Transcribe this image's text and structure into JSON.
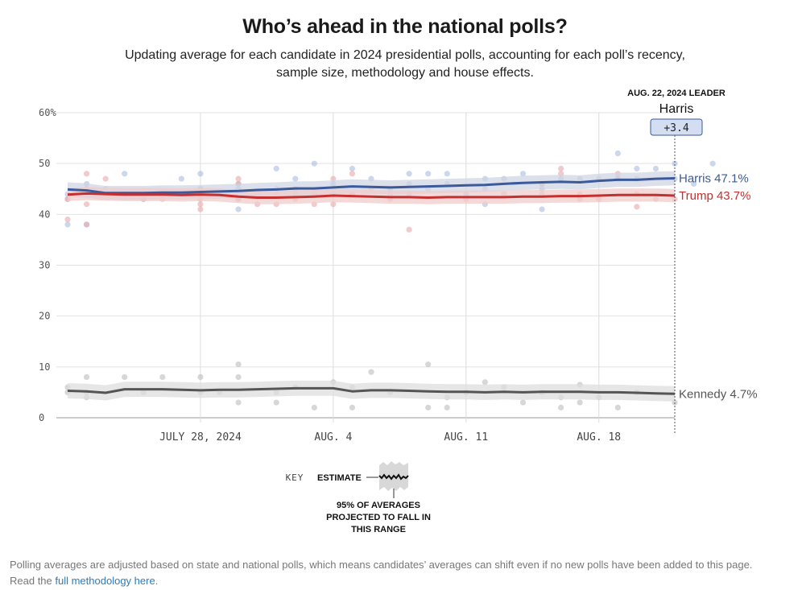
{
  "header": {
    "title": "Who’s ahead in the national polls?",
    "subtitle_line1": "Updating average for each candidate in 2024 presidential polls, accounting for each poll’s recency,",
    "subtitle_line2": "sample size, methodology and house effects."
  },
  "leader_box": {
    "caption": "AUG. 22, 2024 LEADER",
    "name": "Harris",
    "margin": "+3.4"
  },
  "key": {
    "label": "KEY",
    "estimate": "ESTIMATE",
    "range_note": [
      "95% OF AVERAGES",
      "PROJECTED TO FALL IN",
      "THIS RANGE"
    ]
  },
  "footnote": {
    "text_line1": "Polling averages are adjusted based on state and national polls, which means candidates’ averages can shift even if no new polls have been added to this page.",
    "text_line2_prefix": "Read the ",
    "link_text": "full methodology here",
    "text_line2_suffix": "."
  },
  "chart_data": {
    "type": "line",
    "x_start_date": "2024-07-21",
    "x_end_date": "2024-08-22",
    "x_ticks": [
      {
        "date": "2024-07-28",
        "label": "JULY 28, 2024"
      },
      {
        "date": "2024-08-04",
        "label": "AUG. 4"
      },
      {
        "date": "2024-08-11",
        "label": "AUG. 11"
      },
      {
        "date": "2024-08-18",
        "label": "AUG. 18"
      }
    ],
    "y_ticks": [
      {
        "value": 0,
        "label": "0"
      },
      {
        "value": 10,
        "label": "10"
      },
      {
        "value": 20,
        "label": "20"
      },
      {
        "value": 30,
        "label": "30"
      },
      {
        "value": 40,
        "label": "40"
      },
      {
        "value": 50,
        "label": "50"
      },
      {
        "value": 60,
        "label": "60%"
      }
    ],
    "ylim": [
      0,
      60
    ],
    "grid": true,
    "series": [
      {
        "name": "Harris",
        "end_label": "Harris 47.1%",
        "color": "#3a5a9c",
        "band_width": 1.4,
        "points": [
          [
            "2024-07-21",
            44.9
          ],
          [
            "2024-07-22",
            44.7
          ],
          [
            "2024-07-23",
            44.2
          ],
          [
            "2024-07-24",
            44.2
          ],
          [
            "2024-07-25",
            44.2
          ],
          [
            "2024-07-26",
            44.3
          ],
          [
            "2024-07-27",
            44.3
          ],
          [
            "2024-07-28",
            44.4
          ],
          [
            "2024-07-29",
            44.5
          ],
          [
            "2024-07-30",
            44.6
          ],
          [
            "2024-07-31",
            44.8
          ],
          [
            "2024-08-01",
            44.9
          ],
          [
            "2024-08-02",
            45.1
          ],
          [
            "2024-08-03",
            45.1
          ],
          [
            "2024-08-04",
            45.3
          ],
          [
            "2024-08-05",
            45.5
          ],
          [
            "2024-08-06",
            45.4
          ],
          [
            "2024-08-07",
            45.3
          ],
          [
            "2024-08-08",
            45.4
          ],
          [
            "2024-08-09",
            45.5
          ],
          [
            "2024-08-10",
            45.6
          ],
          [
            "2024-08-11",
            45.7
          ],
          [
            "2024-08-12",
            45.8
          ],
          [
            "2024-08-13",
            46.0
          ],
          [
            "2024-08-14",
            46.2
          ],
          [
            "2024-08-15",
            46.3
          ],
          [
            "2024-08-16",
            46.4
          ],
          [
            "2024-08-17",
            46.3
          ],
          [
            "2024-08-18",
            46.6
          ],
          [
            "2024-08-19",
            46.8
          ],
          [
            "2024-08-20",
            46.8
          ],
          [
            "2024-08-21",
            47.0
          ],
          [
            "2024-08-22",
            47.1
          ]
        ],
        "polls": [
          [
            "2024-07-21",
            38
          ],
          [
            "2024-07-21",
            43
          ],
          [
            "2024-07-21",
            44
          ],
          [
            "2024-07-22",
            44
          ],
          [
            "2024-07-22",
            46
          ],
          [
            "2024-07-22",
            38
          ],
          [
            "2024-07-23",
            45
          ],
          [
            "2024-07-24",
            48
          ],
          [
            "2024-07-25",
            43
          ],
          [
            "2024-07-26",
            44
          ],
          [
            "2024-07-27",
            47
          ],
          [
            "2024-07-28",
            48
          ],
          [
            "2024-07-28",
            45
          ],
          [
            "2024-07-28",
            44
          ],
          [
            "2024-07-29",
            44
          ],
          [
            "2024-07-30",
            45
          ],
          [
            "2024-07-30",
            43
          ],
          [
            "2024-07-30",
            41
          ],
          [
            "2024-07-30",
            46
          ],
          [
            "2024-07-31",
            44
          ],
          [
            "2024-08-01",
            49
          ],
          [
            "2024-08-01",
            45
          ],
          [
            "2024-08-02",
            47
          ],
          [
            "2024-08-02",
            44
          ],
          [
            "2024-08-03",
            50
          ],
          [
            "2024-08-03",
            44
          ],
          [
            "2024-08-04",
            46
          ],
          [
            "2024-08-04",
            44
          ],
          [
            "2024-08-05",
            49
          ],
          [
            "2024-08-05",
            44
          ],
          [
            "2024-08-06",
            47
          ],
          [
            "2024-08-07",
            45
          ],
          [
            "2024-08-08",
            48
          ],
          [
            "2024-08-08",
            46
          ],
          [
            "2024-08-09",
            48
          ],
          [
            "2024-08-10",
            48
          ],
          [
            "2024-08-10",
            46
          ],
          [
            "2024-08-11",
            44
          ],
          [
            "2024-08-12",
            47
          ],
          [
            "2024-08-12",
            42
          ],
          [
            "2024-08-13",
            47
          ],
          [
            "2024-08-14",
            48
          ],
          [
            "2024-08-15",
            46
          ],
          [
            "2024-08-15",
            41
          ],
          [
            "2024-08-15",
            45
          ],
          [
            "2024-08-16",
            47
          ],
          [
            "2024-08-17",
            47
          ],
          [
            "2024-08-18",
            47
          ],
          [
            "2024-08-19",
            52
          ],
          [
            "2024-08-19",
            47
          ],
          [
            "2024-08-20",
            49
          ],
          [
            "2024-08-20",
            47
          ],
          [
            "2024-08-21",
            49
          ],
          [
            "2024-08-22",
            50
          ],
          [
            "2024-08-22",
            47
          ],
          [
            "2024-08-23",
            46
          ],
          [
            "2024-08-24",
            50
          ]
        ]
      },
      {
        "name": "Trump",
        "end_label": "Trump 43.7%",
        "color": "#c62f2f",
        "band_width": 1.3,
        "points": [
          [
            "2024-07-21",
            43.9
          ],
          [
            "2024-07-22",
            44.1
          ],
          [
            "2024-07-23",
            44.0
          ],
          [
            "2024-07-24",
            43.9
          ],
          [
            "2024-07-25",
            43.9
          ],
          [
            "2024-07-26",
            43.9
          ],
          [
            "2024-07-27",
            43.8
          ],
          [
            "2024-07-28",
            43.9
          ],
          [
            "2024-07-29",
            43.8
          ],
          [
            "2024-07-30",
            43.5
          ],
          [
            "2024-07-31",
            43.3
          ],
          [
            "2024-08-01",
            43.3
          ],
          [
            "2024-08-02",
            43.4
          ],
          [
            "2024-08-03",
            43.5
          ],
          [
            "2024-08-04",
            43.7
          ],
          [
            "2024-08-05",
            43.6
          ],
          [
            "2024-08-06",
            43.5
          ],
          [
            "2024-08-07",
            43.4
          ],
          [
            "2024-08-08",
            43.4
          ],
          [
            "2024-08-09",
            43.3
          ],
          [
            "2024-08-10",
            43.4
          ],
          [
            "2024-08-11",
            43.4
          ],
          [
            "2024-08-12",
            43.4
          ],
          [
            "2024-08-13",
            43.4
          ],
          [
            "2024-08-14",
            43.5
          ],
          [
            "2024-08-15",
            43.5
          ],
          [
            "2024-08-16",
            43.6
          ],
          [
            "2024-08-17",
            43.6
          ],
          [
            "2024-08-18",
            43.7
          ],
          [
            "2024-08-19",
            43.8
          ],
          [
            "2024-08-20",
            43.8
          ],
          [
            "2024-08-21",
            43.8
          ],
          [
            "2024-08-22",
            43.7
          ]
        ],
        "polls": [
          [
            "2024-07-21",
            39
          ],
          [
            "2024-07-21",
            43
          ],
          [
            "2024-07-22",
            48
          ],
          [
            "2024-07-22",
            45
          ],
          [
            "2024-07-22",
            38
          ],
          [
            "2024-07-22",
            42
          ],
          [
            "2024-07-23",
            47
          ],
          [
            "2024-07-24",
            44
          ],
          [
            "2024-07-25",
            43
          ],
          [
            "2024-07-26",
            43
          ],
          [
            "2024-07-28",
            45
          ],
          [
            "2024-07-28",
            42
          ],
          [
            "2024-07-28",
            41
          ],
          [
            "2024-07-28",
            43
          ],
          [
            "2024-07-29",
            44
          ],
          [
            "2024-07-30",
            47
          ],
          [
            "2024-07-30",
            46
          ],
          [
            "2024-07-30",
            43
          ],
          [
            "2024-07-31",
            42
          ],
          [
            "2024-08-01",
            44
          ],
          [
            "2024-08-01",
            42
          ],
          [
            "2024-08-02",
            45
          ],
          [
            "2024-08-02",
            43
          ],
          [
            "2024-08-03",
            42
          ],
          [
            "2024-08-03",
            44
          ],
          [
            "2024-08-04",
            47
          ],
          [
            "2024-08-04",
            42
          ],
          [
            "2024-08-05",
            44
          ],
          [
            "2024-08-05",
            48
          ],
          [
            "2024-08-06",
            45
          ],
          [
            "2024-08-07",
            44
          ],
          [
            "2024-08-07",
            43
          ],
          [
            "2024-08-08",
            44
          ],
          [
            "2024-08-08",
            37
          ],
          [
            "2024-08-09",
            45
          ],
          [
            "2024-08-11",
            43
          ],
          [
            "2024-08-12",
            45
          ],
          [
            "2024-08-13",
            44
          ],
          [
            "2024-08-15",
            46
          ],
          [
            "2024-08-15",
            44
          ],
          [
            "2024-08-16",
            49
          ],
          [
            "2024-08-16",
            48
          ],
          [
            "2024-08-17",
            44
          ],
          [
            "2024-08-17",
            43
          ],
          [
            "2024-08-18",
            43
          ],
          [
            "2024-08-19",
            47
          ],
          [
            "2024-08-19",
            48
          ],
          [
            "2024-08-20",
            44
          ],
          [
            "2024-08-20",
            41.5
          ],
          [
            "2024-08-21",
            43
          ],
          [
            "2024-08-22",
            43
          ]
        ]
      },
      {
        "name": "Kennedy",
        "end_label": "Kennedy 4.7%",
        "color": "#555555",
        "band_width": 1.5,
        "points": [
          [
            "2024-07-21",
            5.3
          ],
          [
            "2024-07-22",
            5.2
          ],
          [
            "2024-07-23",
            4.9
          ],
          [
            "2024-07-24",
            5.6
          ],
          [
            "2024-07-25",
            5.6
          ],
          [
            "2024-07-26",
            5.6
          ],
          [
            "2024-07-27",
            5.5
          ],
          [
            "2024-07-28",
            5.4
          ],
          [
            "2024-07-29",
            5.5
          ],
          [
            "2024-07-30",
            5.5
          ],
          [
            "2024-07-31",
            5.6
          ],
          [
            "2024-08-01",
            5.7
          ],
          [
            "2024-08-02",
            5.8
          ],
          [
            "2024-08-03",
            5.8
          ],
          [
            "2024-08-04",
            5.8
          ],
          [
            "2024-08-05",
            5.2
          ],
          [
            "2024-08-06",
            5.4
          ],
          [
            "2024-08-07",
            5.4
          ],
          [
            "2024-08-08",
            5.3
          ],
          [
            "2024-08-09",
            5.2
          ],
          [
            "2024-08-10",
            5.1
          ],
          [
            "2024-08-11",
            5.1
          ],
          [
            "2024-08-12",
            5.0
          ],
          [
            "2024-08-13",
            5.1
          ],
          [
            "2024-08-14",
            5.0
          ],
          [
            "2024-08-15",
            5.1
          ],
          [
            "2024-08-16",
            5.1
          ],
          [
            "2024-08-17",
            5.1
          ],
          [
            "2024-08-18",
            5.0
          ],
          [
            "2024-08-19",
            5.0
          ],
          [
            "2024-08-20",
            4.9
          ],
          [
            "2024-08-21",
            4.8
          ],
          [
            "2024-08-22",
            4.7
          ]
        ],
        "polls": [
          [
            "2024-07-21",
            6
          ],
          [
            "2024-07-21",
            5
          ],
          [
            "2024-07-22",
            8
          ],
          [
            "2024-07-22",
            4
          ],
          [
            "2024-07-22",
            5
          ],
          [
            "2024-07-24",
            8
          ],
          [
            "2024-07-25",
            5
          ],
          [
            "2024-07-26",
            8
          ],
          [
            "2024-07-28",
            8
          ],
          [
            "2024-07-28",
            5
          ],
          [
            "2024-07-29",
            5
          ],
          [
            "2024-07-30",
            10.5
          ],
          [
            "2024-07-30",
            8
          ],
          [
            "2024-07-30",
            3
          ],
          [
            "2024-08-01",
            5
          ],
          [
            "2024-08-01",
            3
          ],
          [
            "2024-08-02",
            6
          ],
          [
            "2024-08-03",
            2
          ],
          [
            "2024-08-04",
            7
          ],
          [
            "2024-08-05",
            6
          ],
          [
            "2024-08-05",
            2
          ],
          [
            "2024-08-06",
            9
          ],
          [
            "2024-08-07",
            5
          ],
          [
            "2024-08-09",
            10.5
          ],
          [
            "2024-08-09",
            2
          ],
          [
            "2024-08-10",
            4
          ],
          [
            "2024-08-10",
            2
          ],
          [
            "2024-08-11",
            5
          ],
          [
            "2024-08-12",
            7
          ],
          [
            "2024-08-13",
            6
          ],
          [
            "2024-08-14",
            3
          ],
          [
            "2024-08-15",
            5
          ],
          [
            "2024-08-16",
            4
          ],
          [
            "2024-08-16",
            2
          ],
          [
            "2024-08-17",
            6.5
          ],
          [
            "2024-08-17",
            3
          ],
          [
            "2024-08-18",
            4
          ],
          [
            "2024-08-19",
            2
          ],
          [
            "2024-08-20",
            5
          ],
          [
            "2024-08-22",
            3
          ]
        ]
      }
    ],
    "leader_marker_date": "2024-08-22"
  }
}
